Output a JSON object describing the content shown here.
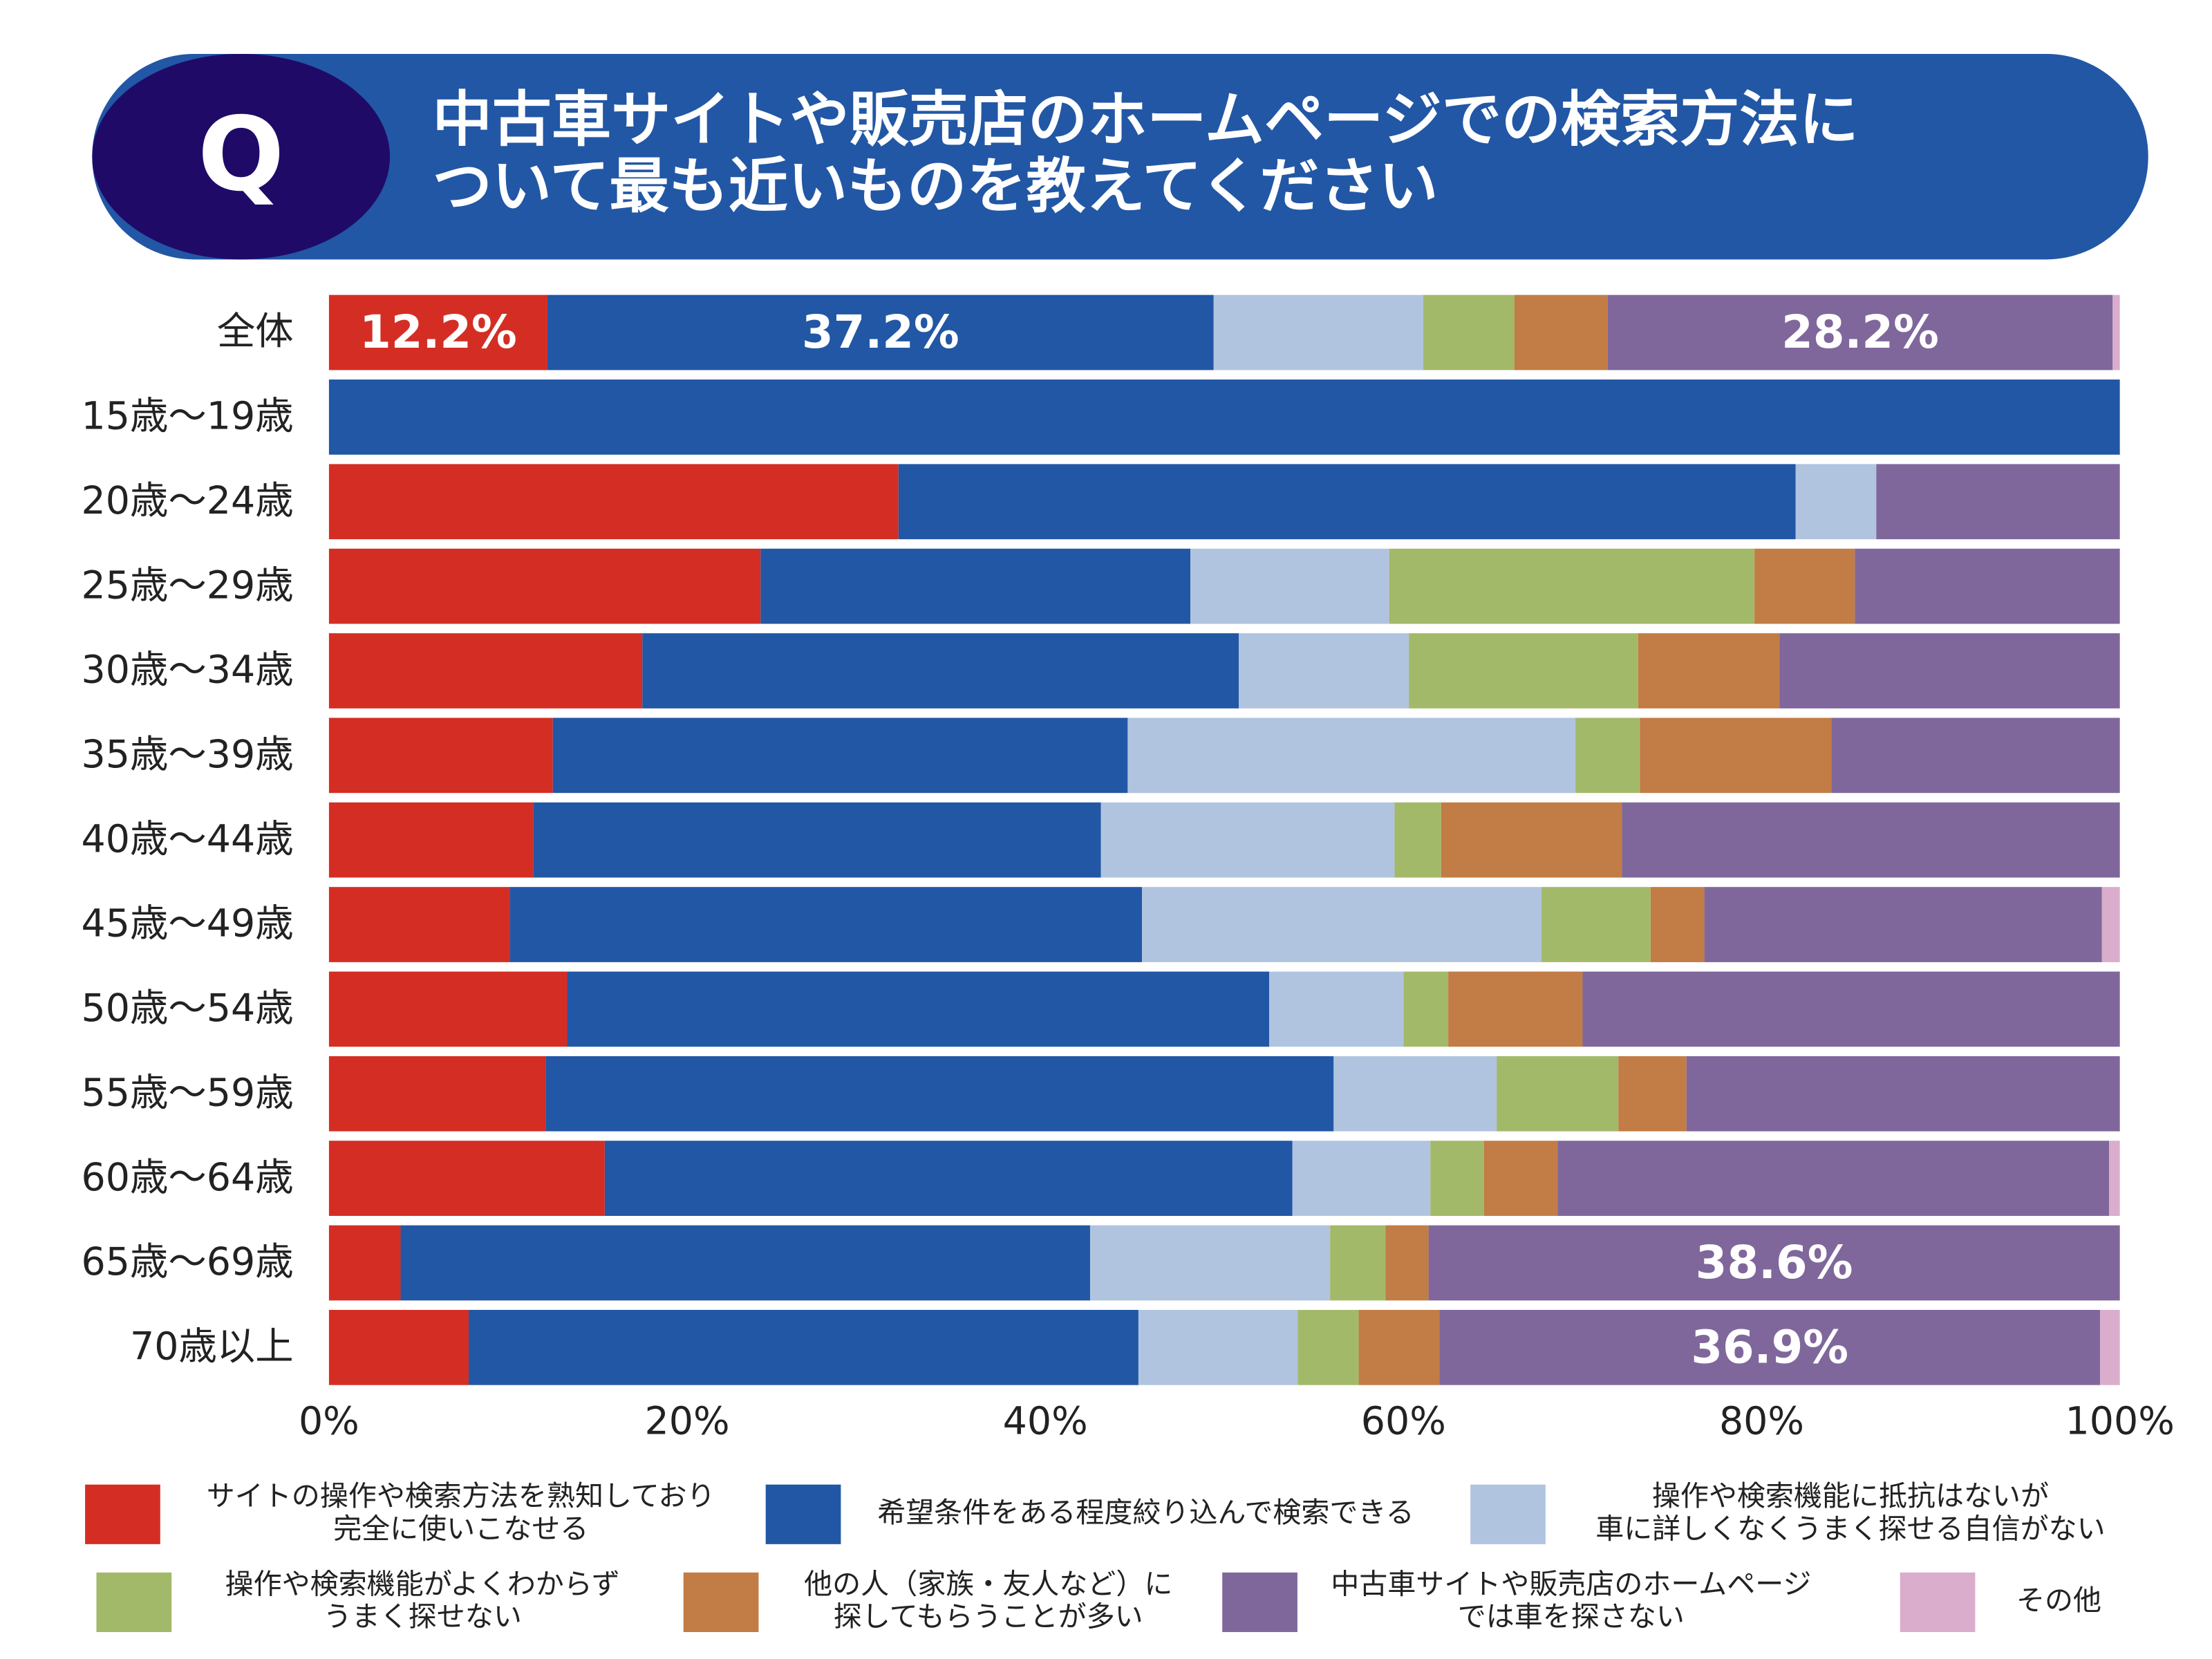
{
  "chart_data": {
    "type": "stacked-bar-horizontal",
    "badge": "Q",
    "title": "中古車サイトや販売店のホームページでの検索方法に\nついて最も近いものを教えてください",
    "categories": [
      "全体",
      "15歳～19歳",
      "20歳～24歳",
      "25歳～29歳",
      "30歳～34歳",
      "35歳～39歳",
      "40歳～44歳",
      "45歳～49歳",
      "50歳～54歳",
      "55歳～59歳",
      "60歳～64歳",
      "65歳～69歳",
      "70歳以上"
    ],
    "series": [
      {
        "name": "サイトの操作や検索方法を熟知しており\n完全に使いこなせる",
        "color": "#d42e24",
        "values": [
          12.2,
          0,
          31.8,
          24.1,
          17.5,
          12.5,
          11.4,
          10.1,
          13.3,
          12.1,
          15.4,
          4.0,
          7.8
        ],
        "value_labels": [
          "12.2%",
          null,
          null,
          null,
          null,
          null,
          null,
          null,
          null,
          null,
          null,
          null,
          null
        ]
      },
      {
        "name": "希望条件をある程度絞り込んで検索できる",
        "color": "#2257a5",
        "values": [
          37.2,
          100,
          50.1,
          24.0,
          33.3,
          32.1,
          31.7,
          35.3,
          39.2,
          44.0,
          38.4,
          38.5,
          37.4
        ],
        "value_labels": [
          "37.2%",
          null,
          null,
          null,
          null,
          null,
          null,
          null,
          null,
          null,
          null,
          null,
          null
        ]
      },
      {
        "name": "操作や検索機能に抵抗はないが\n車に詳しくなくうまく探せる自信がない",
        "color": "#b0c4e0",
        "values": [
          11.7,
          0,
          4.5,
          11.1,
          9.5,
          25.0,
          16.4,
          22.3,
          7.5,
          9.1,
          7.7,
          13.4,
          8.9
        ]
      },
      {
        "name": "操作や検索機能がよくわからず\nうまく探せない",
        "color": "#a3b96a",
        "values": [
          5.1,
          0,
          0,
          20.4,
          12.8,
          3.6,
          2.6,
          6.1,
          2.5,
          6.8,
          3.0,
          3.1,
          3.4
        ]
      },
      {
        "name": "他の人（家族・友人など）に\n探してもらうことが多い",
        "color": "#c27c45",
        "values": [
          5.2,
          0,
          0,
          5.6,
          7.9,
          10.7,
          10.1,
          3.0,
          7.5,
          3.8,
          4.1,
          2.4,
          4.5
        ]
      },
      {
        "name": "中古車サイトや販売店のホームページ\nでは車を探さない",
        "color": "#7f679c",
        "values": [
          28.2,
          0,
          13.6,
          14.8,
          19.0,
          16.1,
          27.8,
          22.2,
          30.0,
          24.2,
          30.8,
          38.6,
          36.9
        ],
        "value_labels": [
          "28.2%",
          null,
          null,
          null,
          null,
          null,
          null,
          null,
          null,
          null,
          null,
          "38.6%",
          "36.9%"
        ]
      },
      {
        "name": "その他",
        "color": "#d9adcb",
        "values": [
          0.4,
          0,
          0,
          0,
          0,
          0,
          0,
          1.0,
          0,
          0,
          0.6,
          0,
          1.1
        ]
      }
    ],
    "xlim": [
      0,
      100
    ],
    "xticks": [
      {
        "value": 0,
        "label": "0%"
      },
      {
        "value": 20,
        "label": "20%"
      },
      {
        "value": 40,
        "label": "40%"
      },
      {
        "value": 60,
        "label": "60%"
      },
      {
        "value": 80,
        "label": "80%"
      },
      {
        "value": 100,
        "label": "100%"
      }
    ]
  }
}
